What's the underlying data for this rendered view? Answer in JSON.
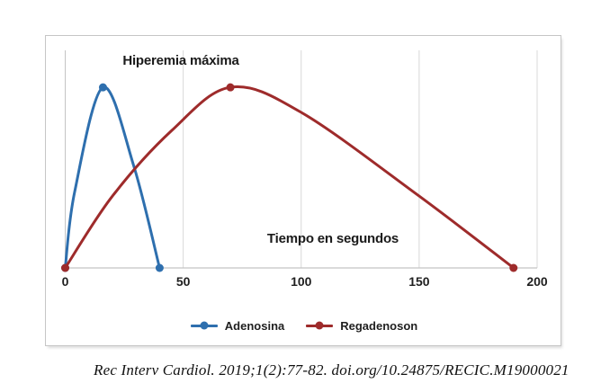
{
  "citation": "Rec Interv Cardiol. 2019;1(2):77-82. doi.org/10.24875/RECIC.M19000021",
  "chart_data": {
    "type": "line",
    "title": "Hiperemia máxima",
    "xlabel": "Tiempo en segundos",
    "xlim": [
      0,
      200
    ],
    "ylim": [
      0,
      1
    ],
    "x_ticks": [
      0,
      50,
      100,
      150,
      200
    ],
    "grid": "vertical-only",
    "y_axis_labels": false,
    "legend_position": "bottom",
    "axis_color": "#c4c4c4",
    "grid_color": "#d8d8d8",
    "series": [
      {
        "name": "Adenosina",
        "color": "#2E6FAE",
        "points": [
          [
            0,
            0
          ],
          [
            4,
            0.35
          ],
          [
            16,
            0.83
          ],
          [
            29,
            0.47
          ],
          [
            40,
            0
          ]
        ],
        "markers": [
          [
            0,
            0
          ],
          [
            16,
            0.83
          ],
          [
            40,
            0
          ]
        ]
      },
      {
        "name": "Regadenoson",
        "color": "#9E2B2B",
        "points": [
          [
            0,
            0
          ],
          [
            20,
            0.33
          ],
          [
            45,
            0.63
          ],
          [
            70,
            0.83
          ],
          [
            100,
            0.715
          ],
          [
            150,
            0.33
          ],
          [
            190,
            0
          ]
        ],
        "markers": [
          [
            0,
            0
          ],
          [
            70,
            0.83
          ],
          [
            190,
            0
          ]
        ]
      }
    ]
  }
}
